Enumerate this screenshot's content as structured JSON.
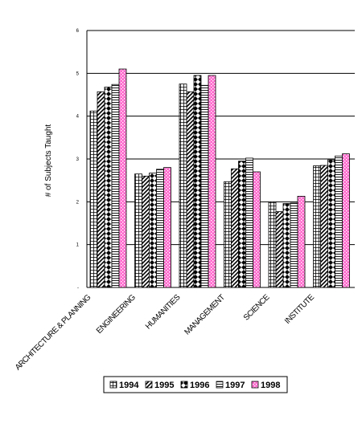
{
  "chart_data": {
    "type": "bar",
    "title": "",
    "xlabel": "",
    "ylabel": "# of Subjects Taught",
    "ylim": [
      0,
      6
    ],
    "yticks": [
      "",
      "1",
      "2",
      "3",
      "4",
      "5",
      "6"
    ],
    "grid": true,
    "legend_position": "bottom",
    "categories": [
      "ARCHITECTURE & PLANNING",
      "ENGINEERING",
      "HUMANITIES",
      "MANAGEMENT",
      "SCIENCE",
      "INSTITUTE"
    ],
    "series": [
      {
        "name": "1994",
        "values": [
          4.12,
          2.65,
          4.75,
          2.47,
          2.0,
          2.84
        ]
      },
      {
        "name": "1995",
        "values": [
          4.57,
          2.6,
          4.57,
          2.77,
          1.77,
          2.85
        ]
      },
      {
        "name": "1996",
        "values": [
          4.68,
          2.67,
          4.95,
          2.95,
          1.96,
          2.98
        ]
      },
      {
        "name": "1997",
        "values": [
          4.74,
          2.76,
          4.72,
          3.02,
          1.97,
          3.07
        ]
      },
      {
        "name": "1998",
        "values": [
          5.1,
          2.8,
          4.95,
          2.7,
          2.13,
          3.12
        ]
      }
    ]
  },
  "colors": {
    "pink": "#ff66cc",
    "black": "#000000",
    "gridline": "#000000"
  }
}
